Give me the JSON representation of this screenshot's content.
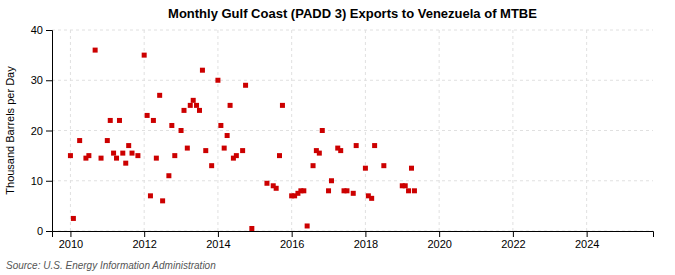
{
  "chart_data": {
    "type": "scatter",
    "title": "Monthly Gulf Coast (PADD 3) Exports to Venezuela of MTBE",
    "y_label": "Thousand Barrels per Day",
    "annotations": [
      "Source: U.S. Energy Information Administration"
    ],
    "color": "#cc0000",
    "marker": "square",
    "grid": true,
    "xlim": [
      2009.5,
      2025.8
    ],
    "ylim": [
      0,
      40
    ],
    "xticks": [
      2010,
      2012,
      2014,
      2016,
      2018,
      2020,
      2022,
      2024
    ],
    "yticks": [
      0,
      10,
      20,
      30,
      40
    ],
    "x": [
      2010.0,
      2010.08,
      2010.25,
      2010.42,
      2010.5,
      2010.67,
      2010.83,
      2011.0,
      2011.08,
      2011.17,
      2011.25,
      2011.33,
      2011.42,
      2011.5,
      2011.58,
      2011.67,
      2011.83,
      2012.0,
      2012.08,
      2012.17,
      2012.25,
      2012.33,
      2012.42,
      2012.5,
      2012.67,
      2012.75,
      2012.83,
      2013.0,
      2013.08,
      2013.17,
      2013.25,
      2013.33,
      2013.42,
      2013.5,
      2013.58,
      2013.67,
      2013.83,
      2014.0,
      2014.08,
      2014.17,
      2014.25,
      2014.33,
      2014.42,
      2014.5,
      2014.67,
      2014.75,
      2014.92,
      2015.33,
      2015.5,
      2015.58,
      2015.67,
      2015.75,
      2016.0,
      2016.08,
      2016.17,
      2016.25,
      2016.33,
      2016.42,
      2016.58,
      2016.67,
      2016.75,
      2016.83,
      2017.0,
      2017.08,
      2017.25,
      2017.33,
      2017.42,
      2017.5,
      2017.67,
      2017.75,
      2018.0,
      2018.08,
      2018.17,
      2018.25,
      2018.5,
      2019.0,
      2019.08,
      2019.17,
      2019.25,
      2019.33
    ],
    "values": [
      15.0,
      2.5,
      18.0,
      14.5,
      15.0,
      36.0,
      14.5,
      18.0,
      22.0,
      15.5,
      14.5,
      22.0,
      15.5,
      13.5,
      17.0,
      15.5,
      15.0,
      35.0,
      23.0,
      7.0,
      22.0,
      14.5,
      27.0,
      6.0,
      11.0,
      21.0,
      15.0,
      20.0,
      24.0,
      16.5,
      25.0,
      26.0,
      25.0,
      24.0,
      32.0,
      16.0,
      13.0,
      30.0,
      21.0,
      16.5,
      19.0,
      25.0,
      14.5,
      15.0,
      16.0,
      29.0,
      0.5,
      9.5,
      9.0,
      8.5,
      15.0,
      25.0,
      7.0,
      7.0,
      7.5,
      8.0,
      8.0,
      1.0,
      13.0,
      16.0,
      15.5,
      20.0,
      8.0,
      10.0,
      16.5,
      16.0,
      8.0,
      8.0,
      7.5,
      17.0,
      12.5,
      7.0,
      6.5,
      17.0,
      13.0,
      9.0,
      9.0,
      8.0,
      12.5,
      8.0
    ]
  }
}
